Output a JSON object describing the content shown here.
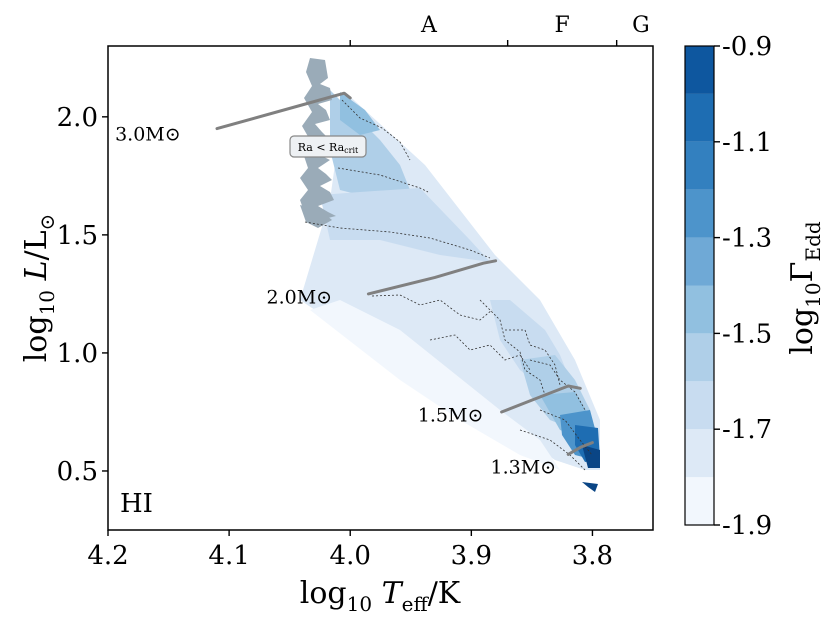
{
  "chart_data": {
    "type": "heatmap",
    "title": "",
    "panel_label": "HI",
    "xlabel": "log10 Teff/K",
    "ylabel": "log10 L/L⊙",
    "xlim": [
      4.2,
      3.75
    ],
    "ylim": [
      0.25,
      2.3
    ],
    "x_ticks": [
      "4.2",
      "4.1",
      "4.0",
      "3.9",
      "3.8"
    ],
    "x_tick_values": [
      4.2,
      4.1,
      4.0,
      3.9,
      3.8
    ],
    "y_ticks": [
      "0.5",
      "1.0",
      "1.5",
      "2.0"
    ],
    "y_tick_values": [
      0.5,
      1.0,
      1.5,
      2.0
    ],
    "top_axis": {
      "labels": [
        "A",
        "F",
        "G"
      ],
      "label_positions": [
        3.935,
        3.825,
        3.76
      ],
      "boundaries": [
        4.0,
        3.87,
        3.78
      ]
    },
    "colorbar": {
      "label": "log10ΓEdd",
      "range": [
        -1.9,
        -0.9
      ],
      "tick_labels": [
        "-0.9",
        "-1.1",
        "-1.3",
        "-1.5",
        "-1.7",
        "-1.9"
      ],
      "tick_values": [
        -0.9,
        -1.1,
        -1.3,
        -1.5,
        -1.7,
        -1.9
      ],
      "levels": [
        -1.9,
        -1.8,
        -1.7,
        -1.6,
        -1.5,
        -1.4,
        -1.3,
        -1.2,
        -1.1,
        -1.0,
        -0.9
      ],
      "colors": [
        "#f2f7fd",
        "#dde9f6",
        "#c8dcf0",
        "#afcfe8",
        "#91c0e0",
        "#6fa9d6",
        "#4d94cb",
        "#3380bf",
        "#1e6db2",
        "#0e579f",
        "#0a4585"
      ]
    },
    "tracks": [
      {
        "label": "3.0M⊙",
        "mass": 3.0,
        "teff": [
          4.11,
          4.04,
          4.005,
          4.0
        ],
        "logL": [
          1.95,
          2.05,
          2.1,
          2.08
        ]
      },
      {
        "label": "2.0M⊙",
        "mass": 2.0,
        "teff": [
          3.985,
          3.93,
          3.89,
          3.88
        ],
        "logL": [
          1.25,
          1.32,
          1.38,
          1.39
        ]
      },
      {
        "label": "1.5M⊙",
        "mass": 1.5,
        "teff": [
          3.875,
          3.85,
          3.82,
          3.81
        ],
        "logL": [
          0.75,
          0.8,
          0.86,
          0.85
        ]
      },
      {
        "label": "1.3M⊙",
        "mass": 1.3,
        "teff": [
          3.82,
          3.81,
          3.8
        ],
        "logL": [
          0.57,
          0.6,
          0.62
        ]
      }
    ],
    "annotation": "Ra < Ra_crit"
  },
  "colors": {
    "track": "#808080",
    "unstable_region": "#9aabb8"
  }
}
